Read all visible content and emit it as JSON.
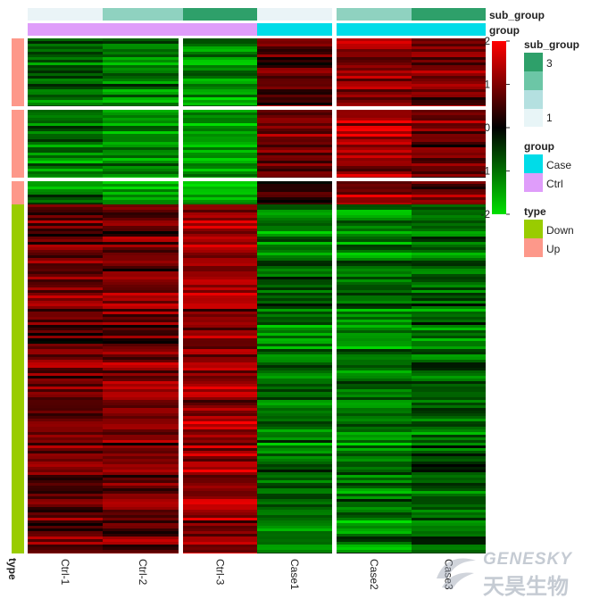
{
  "chart_data": {
    "type": "heatmap",
    "columns": [
      "Ctrl-1",
      "Ctrl-2",
      "Ctrl-3",
      "Case1",
      "Case2",
      "Case3"
    ],
    "sub_group": [
      "1",
      "2",
      "3",
      "1",
      "2",
      "3"
    ],
    "group": [
      "Ctrl",
      "Ctrl",
      "Ctrl",
      "Case",
      "Case",
      "Case"
    ],
    "column_splits": [
      [
        "Ctrl-1",
        "Ctrl-2"
      ],
      [
        "Ctrl-3",
        "Case1"
      ],
      [
        "Case2",
        "Case3"
      ]
    ],
    "row_blocks": [
      {
        "type": "Up",
        "mean_values": [
          -0.9,
          -1.1,
          -1.3,
          0.7,
          1.1,
          0.9
        ]
      },
      {
        "type": "Up",
        "mean_values": [
          -1.0,
          -1.2,
          -1.4,
          0.8,
          1.3,
          0.8
        ]
      },
      {
        "type": "Up",
        "mean_values": [
          -1.0,
          -1.3,
          -1.3,
          0.5,
          1.1,
          0.9
        ]
      },
      {
        "type": "Down",
        "mean_values": [
          0.8,
          0.9,
          1.2,
          -1.0,
          -1.1,
          -0.9
        ]
      }
    ],
    "color_scale": {
      "min": -2,
      "max": 2,
      "low": "#00e000",
      "mid": "#000000",
      "high": "#ff0000"
    },
    "legend_ticks": [
      "2",
      "1",
      "0",
      "-1",
      "-2"
    ],
    "annotation_titles": {
      "sub_group": "sub_group",
      "group": "group",
      "type": "type"
    },
    "legends": {
      "sub_group": {
        "title": "sub_group",
        "labels": [
          "3",
          "1"
        ]
      },
      "group": {
        "title": "group",
        "labels": [
          "Case",
          "Ctrl"
        ]
      },
      "type": {
        "title": "type",
        "labels": [
          "Down",
          "Up"
        ]
      }
    }
  },
  "colors": {
    "sub_group_1": "#eaf4f7",
    "sub_group_2": "#8fd2c0",
    "sub_group_3": "#2ea06a",
    "sub_group_legend": [
      "#2ea06a",
      "#6cc6a6",
      "#b4e0e0",
      "#e8f5f7"
    ],
    "group_Ctrl": "#df9dfa",
    "group_Case": "#00dce8",
    "type_Up": "#fd988a",
    "type_Down": "#99cc00"
  },
  "watermark": {
    "latin": "GENESKY",
    "cjk": "天昊生物"
  }
}
